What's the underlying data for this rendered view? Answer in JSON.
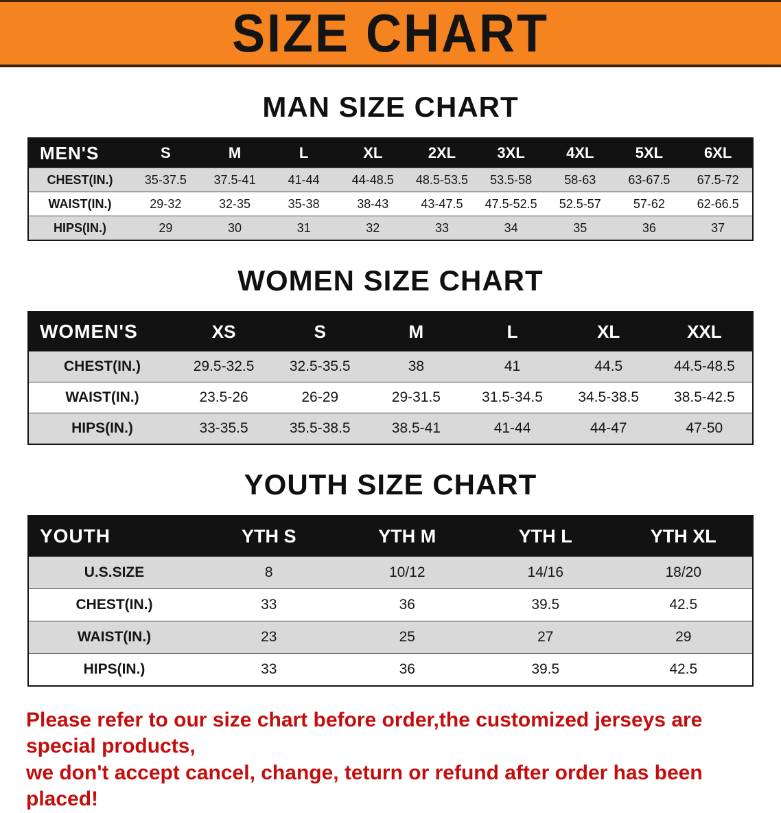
{
  "banner": {
    "title": "SIZE CHART"
  },
  "colors": {
    "banner_bg": "#f5831f",
    "banner_edge": "#3c2408",
    "header_bg": "#121212",
    "row_alt": "#d9d9d9",
    "note_color": "#c40d0d"
  },
  "tables": {
    "men": {
      "heading": "MAN SIZE CHART",
      "header": [
        "MEN'S",
        "S",
        "M",
        "L",
        "XL",
        "2XL",
        "3XL",
        "4XL",
        "5XL",
        "6XL"
      ],
      "rows": [
        [
          "CHEST(IN.)",
          "35-37.5",
          "37.5-41",
          "41-44",
          "44-48.5",
          "48.5-53.5",
          "53.5-58",
          "58-63",
          "63-67.5",
          "67.5-72"
        ],
        [
          "WAIST(IN.)",
          "29-32",
          "32-35",
          "35-38",
          "38-43",
          "43-47.5",
          "47.5-52.5",
          "52.5-57",
          "57-62",
          "62-66.5"
        ],
        [
          "HIPS(IN.)",
          "29",
          "30",
          "31",
          "32",
          "33",
          "34",
          "35",
          "36",
          "37"
        ]
      ]
    },
    "women": {
      "heading": "WOMEN SIZE CHART",
      "header": [
        "WOMEN'S",
        "XS",
        "S",
        "M",
        "L",
        "XL",
        "XXL"
      ],
      "rows": [
        [
          "CHEST(IN.)",
          "29.5-32.5",
          "32.5-35.5",
          "38",
          "41",
          "44.5",
          "44.5-48.5"
        ],
        [
          "WAIST(IN.)",
          "23.5-26",
          "26-29",
          "29-31.5",
          "31.5-34.5",
          "34.5-38.5",
          "38.5-42.5"
        ],
        [
          "HIPS(IN.)",
          "33-35.5",
          "35.5-38.5",
          "38.5-41",
          "41-44",
          "44-47",
          "47-50"
        ]
      ]
    },
    "youth": {
      "heading": "YOUTH SIZE CHART",
      "header": [
        "YOUTH",
        "YTH S",
        "YTH M",
        "YTH L",
        "YTH XL"
      ],
      "rows": [
        [
          "U.S.SIZE",
          "8",
          "10/12",
          "14/16",
          "18/20"
        ],
        [
          "CHEST(IN.)",
          "33",
          "36",
          "39.5",
          "42.5"
        ],
        [
          "WAIST(IN.)",
          "23",
          "25",
          "27",
          "29"
        ],
        [
          "HIPS(IN.)",
          "33",
          "36",
          "39.5",
          "42.5"
        ]
      ]
    }
  },
  "note": {
    "line1": "Please refer to our size chart before order,the customized jerseys are special products,",
    "line2": "we don't accept cancel, change, teturn or refund after order has been placed!"
  }
}
